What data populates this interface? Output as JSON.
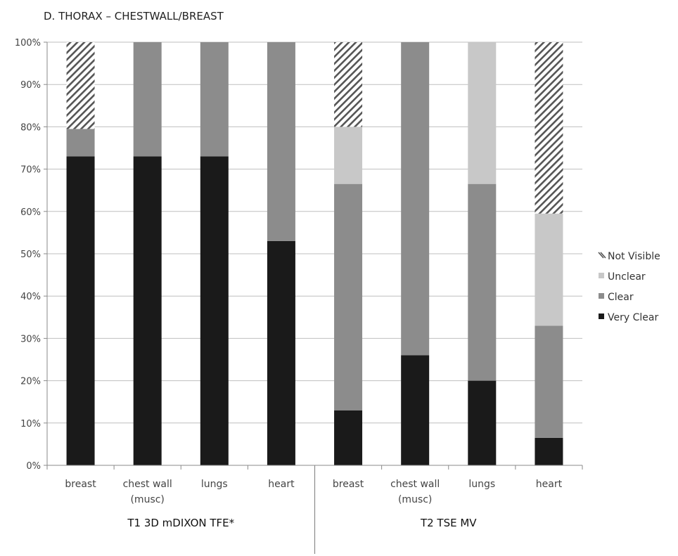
{
  "chart_data": {
    "type": "bar",
    "stacked": true,
    "title": "D. THORAX – CHESTWALL/BREAST",
    "ylim": [
      0,
      100
    ],
    "ytick_labels": [
      "0%",
      "10%",
      "20%",
      "30%",
      "40%",
      "50%",
      "60%",
      "70%",
      "80%",
      "90%",
      "100%"
    ],
    "categories": [
      {
        "line1": "breast",
        "line2": ""
      },
      {
        "line1": "chest wall",
        "line2": "(musc)"
      },
      {
        "line1": "lungs",
        "line2": ""
      },
      {
        "line1": "heart",
        "line2": ""
      },
      {
        "line1": "breast",
        "line2": ""
      },
      {
        "line1": "chest wall",
        "line2": "(musc)"
      },
      {
        "line1": "lungs",
        "line2": ""
      },
      {
        "line1": "heart",
        "line2": ""
      }
    ],
    "groups": [
      {
        "label": "T1 3D mDIXON TFE*",
        "categories": [
          0,
          1,
          2,
          3
        ]
      },
      {
        "label": "T2 TSE MV",
        "categories": [
          4,
          5,
          6,
          7
        ]
      }
    ],
    "series": [
      {
        "name": "Very Clear",
        "color": "#1a1a1a",
        "pattern": "solid",
        "values": [
          73,
          73,
          73,
          53,
          13,
          26,
          20,
          6.5
        ]
      },
      {
        "name": "Clear",
        "color": "#8c8c8c",
        "pattern": "solid",
        "values": [
          6.5,
          27,
          27,
          47,
          53.5,
          74,
          46.5,
          26.5
        ]
      },
      {
        "name": "Unclear",
        "color": "#c8c8c8",
        "pattern": "solid",
        "values": [
          0,
          0,
          0,
          0,
          13.5,
          0,
          33.5,
          26.5
        ]
      },
      {
        "name": "Not Visible",
        "color": "#555555",
        "pattern": "hatch",
        "values": [
          20.5,
          0,
          0,
          0,
          20,
          0,
          0,
          40.5
        ]
      }
    ],
    "legend": {
      "position": "right",
      "order": [
        3,
        2,
        1,
        0
      ]
    },
    "grid": true
  }
}
